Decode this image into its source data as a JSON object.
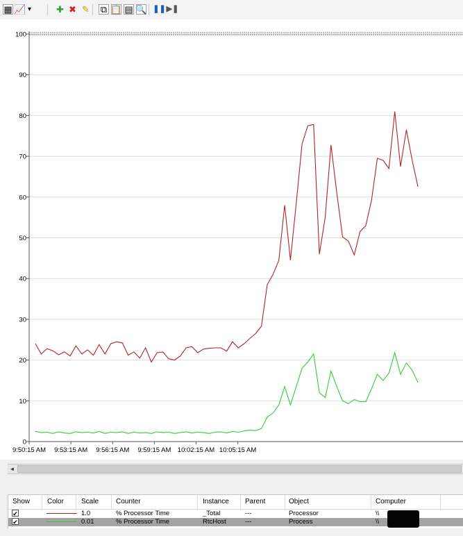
{
  "toolbar": {
    "items": [
      {
        "name": "view-current-activity-icon",
        "glyph": "▦"
      },
      {
        "name": "change-graph-type-icon",
        "glyph": "📈",
        "selected": true
      },
      {
        "name": "graph-type-dropdown-icon",
        "glyph": "▾"
      },
      {
        "name": "add-counter-icon",
        "glyph": "✚",
        "color": "#2ea12e"
      },
      {
        "name": "delete-counter-icon",
        "glyph": "✖",
        "color": "#d81f1f"
      },
      {
        "name": "highlight-icon",
        "glyph": "✎",
        "color": "#c9a400"
      },
      {
        "name": "copy-properties-icon",
        "glyph": "⧉"
      },
      {
        "name": "paste-counter-list-icon",
        "glyph": "📋"
      },
      {
        "name": "properties-icon",
        "glyph": "▤"
      },
      {
        "name": "zoom-icon",
        "glyph": "🔍"
      },
      {
        "name": "freeze-display-icon",
        "glyph": "❚❚",
        "color": "#1a5fb4"
      },
      {
        "name": "update-data-icon",
        "glyph": "▶❚",
        "color": "#555555"
      }
    ]
  },
  "chart_data": {
    "type": "line",
    "title": "",
    "xlabel": "",
    "ylabel": "",
    "ylim": [
      0,
      100
    ],
    "yticks": [
      0,
      10,
      20,
      30,
      40,
      50,
      60,
      70,
      80,
      90,
      100
    ],
    "xtick_labels": [
      "9:50:15 AM",
      "9:53:15 AM",
      "9:56:15 AM",
      "9:59:15 AM",
      "10:02:15 AM",
      "10:05:15 AM"
    ],
    "sample_interval_seconds": 5,
    "grid": "horizontal",
    "legend": "bottom",
    "series": [
      {
        "color": "#b22222",
        "values": [
          24,
          21.5,
          22.8,
          22.3,
          21.3,
          22,
          21,
          23.5,
          21.5,
          22.5,
          21.2,
          23.8,
          21.5,
          24,
          24.5,
          24.2,
          21.2,
          22,
          20.5,
          23,
          19.5,
          21.8,
          22,
          20.3,
          20,
          21,
          23,
          23.3,
          21.8,
          22.7,
          22.9,
          23,
          23,
          22.2,
          24.5,
          23,
          24,
          25.3,
          26.5,
          28.3,
          38.5,
          41,
          44.5,
          58,
          44.5,
          58.5,
          73,
          77.5,
          77.8,
          46,
          55,
          72.8,
          61,
          50.2,
          49.2,
          45.8,
          51.5,
          53,
          59.3,
          69.5,
          69,
          67,
          81,
          67.5,
          76.5,
          69,
          62.5
        ]
      },
      {
        "color": "#33cc33",
        "values": [
          2.5,
          2.2,
          2.3,
          2,
          2.4,
          2.1,
          2,
          2.4,
          2.2,
          2.3,
          2.1,
          2.5,
          2,
          2.3,
          2.2,
          2.4,
          2,
          2.3,
          2.1,
          2.2,
          2,
          2.4,
          2.2,
          2.3,
          2,
          2.2,
          2.4,
          2.1,
          2.3,
          2.2,
          2,
          2.3,
          2.4,
          2.1,
          2.5,
          2.3,
          2.6,
          2.8,
          2.7,
          3.2,
          6,
          7,
          9,
          13.5,
          9,
          13.5,
          18,
          19.5,
          21.5,
          12,
          10.8,
          17.3,
          13.5,
          10,
          9.3,
          10.3,
          9.8,
          9.8,
          13,
          16.5,
          15,
          16.8,
          21.8,
          16.5,
          19.3,
          17.5,
          14.5
        ]
      }
    ]
  },
  "legend": {
    "headers": {
      "show": "Show",
      "color": "Color",
      "scale": "Scale",
      "counter": "Counter",
      "instance": "Instance",
      "parent": "Parent",
      "object": "Object",
      "computer": "Computer"
    },
    "rows": [
      {
        "show": "✔",
        "color": "#b22222",
        "scale": "1.0",
        "counter": "% Processor Time",
        "instance": "_Total",
        "parent": "---",
        "object": "Processor",
        "computer": "\\\\",
        "selected": false
      },
      {
        "show": "✔",
        "color": "#33cc33",
        "scale": "0.01",
        "counter": "% Processor Time",
        "instance": "RtcHost",
        "parent": "---",
        "object": "Process",
        "computer": "\\\\",
        "selected": true
      }
    ]
  },
  "scrollbar": {
    "left_arrow": "◄"
  }
}
